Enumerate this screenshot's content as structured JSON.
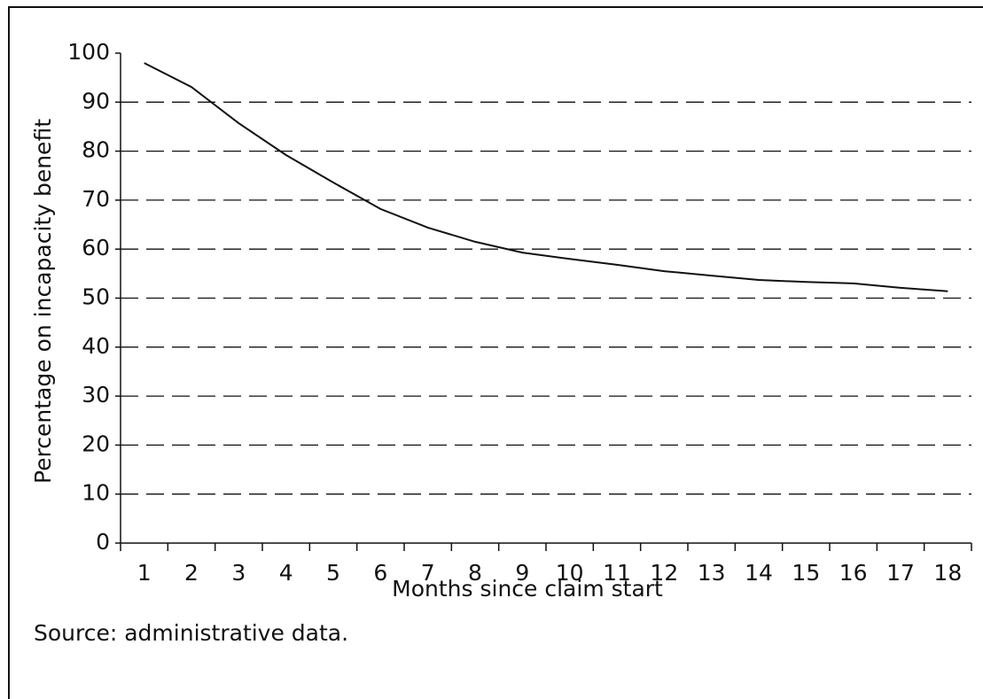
{
  "chart_data": {
    "type": "line",
    "x_label": "Months since claim start",
    "y_label": "Percentage on incapacity benefit",
    "source": "Source: administrative data.",
    "categories": [
      "1",
      "2",
      "3",
      "4",
      "5",
      "6",
      "7",
      "8",
      "9",
      "10",
      "11",
      "12",
      "13",
      "14",
      "15",
      "16",
      "17",
      "18"
    ],
    "values": [
      98.0,
      93.1,
      85.7,
      79.2,
      73.6,
      68.2,
      64.4,
      61.5,
      59.3,
      58.0,
      56.8,
      55.5,
      54.6,
      53.7,
      53.3,
      53.0,
      52.1,
      51.4
    ],
    "color": "#111111",
    "ylim": [
      0,
      100
    ],
    "yticks": [
      0,
      10,
      20,
      30,
      40,
      50,
      60,
      70,
      80,
      90,
      100
    ],
    "grid": true
  }
}
